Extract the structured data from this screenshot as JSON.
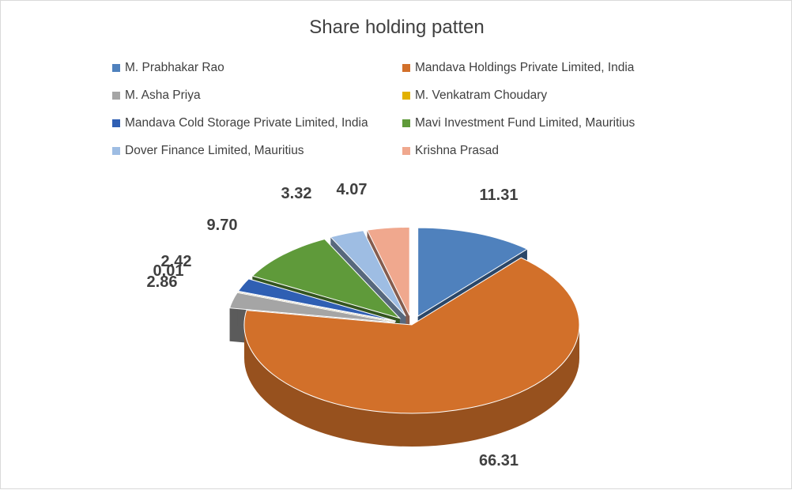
{
  "chart_data": {
    "type": "pie",
    "title": "Share holding patten",
    "legend_position": "top",
    "three_d": true,
    "exploded": true,
    "slices": [
      {
        "name": "M. Prabhakar Rao",
        "value": 11.31,
        "label": "11.31",
        "color": "#4f81bd"
      },
      {
        "name": "Mandava Holdings Private Limited, India",
        "value": 66.31,
        "label": "66.31",
        "color": "#d2702a"
      },
      {
        "name": "M. Asha Priya",
        "value": 2.86,
        "label": "2.86",
        "color": "#a5a5a5"
      },
      {
        "name": "M. Venkatram Choudary",
        "value": 0.01,
        "label": "0.01",
        "color": "#e2b100"
      },
      {
        "name": "Mandava Cold Storage Private Limited, India",
        "value": 2.42,
        "label": "2.42",
        "color": "#2f5fb3"
      },
      {
        "name": "Mavi Investment Fund Limited, Mauritius",
        "value": 9.7,
        "label": "9.70",
        "color": "#5f9a3a"
      },
      {
        "name": "Dover Finance Limited, Mauritius",
        "value": 3.32,
        "label": "3.32",
        "color": "#9ebde3"
      },
      {
        "name": "Krishna Prasad",
        "value": 4.07,
        "label": "4.07",
        "color": "#f0a88e"
      }
    ]
  }
}
